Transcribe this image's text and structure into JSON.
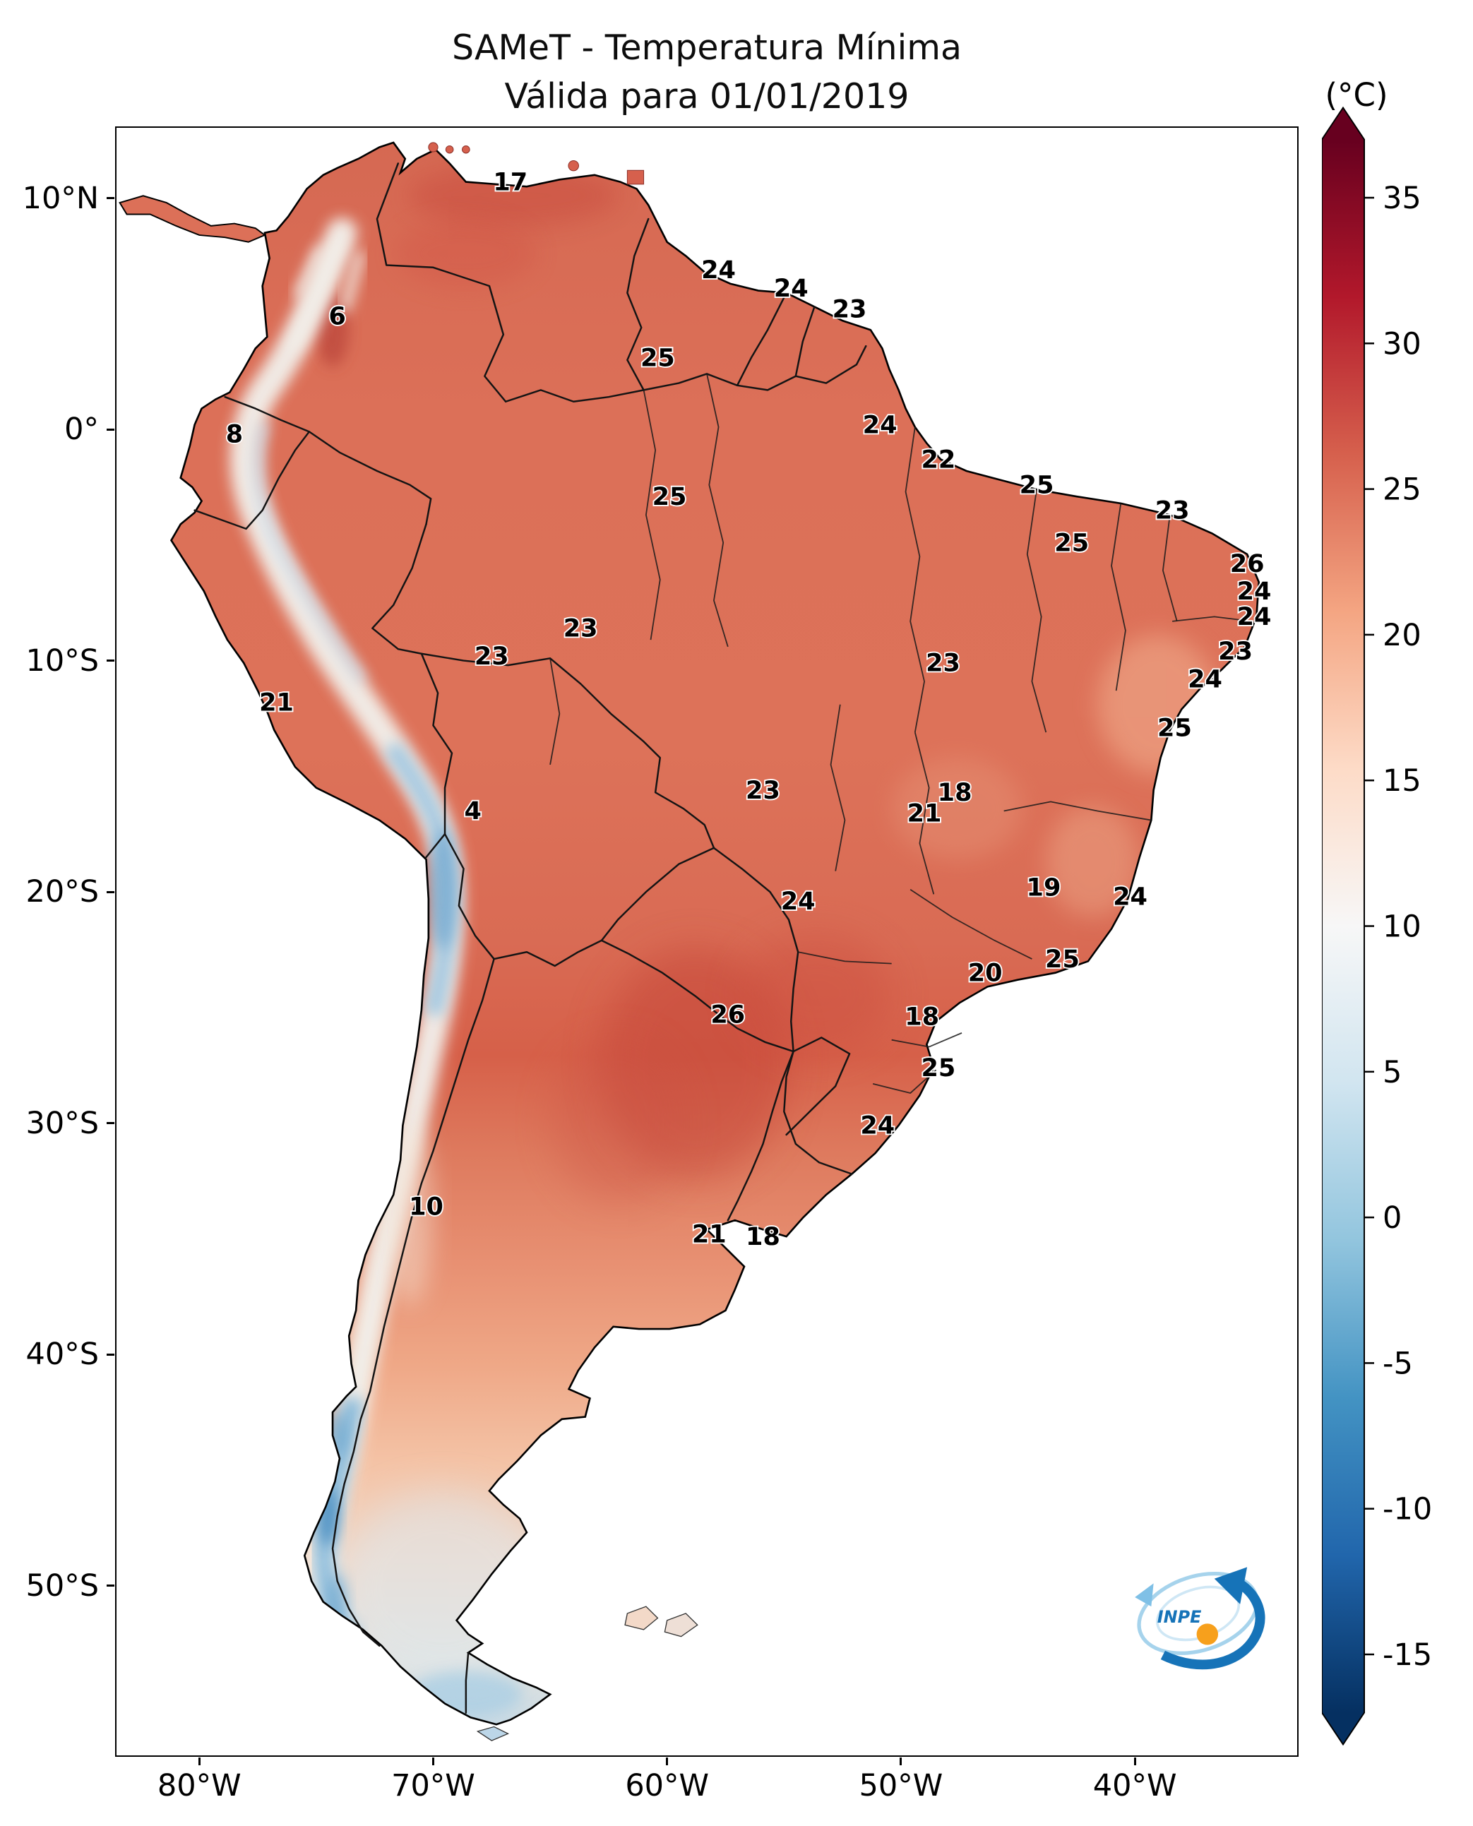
{
  "figure": {
    "title_line1": "SAMeT - Temperatura Mínima",
    "title_line2": "Válida para 01/01/2019"
  },
  "logo": {
    "text": "INPE"
  },
  "axes": {
    "y_ticks": [
      {
        "label": "10°N",
        "lat": 10
      },
      {
        "label": "0°",
        "lat": 0
      },
      {
        "label": "10°S",
        "lat": -10
      },
      {
        "label": "20°S",
        "lat": -20
      },
      {
        "label": "30°S",
        "lat": -30
      },
      {
        "label": "40°S",
        "lat": -40
      },
      {
        "label": "50°S",
        "lat": -50
      }
    ],
    "x_ticks": [
      {
        "label": "80°W",
        "lon": -80
      },
      {
        "label": "70°W",
        "lon": -70
      },
      {
        "label": "60°W",
        "lon": -60
      },
      {
        "label": "50°W",
        "lon": -50
      },
      {
        "label": "40°W",
        "lon": -40
      }
    ]
  },
  "colorbar": {
    "unit": "(°C)",
    "vmin": -17,
    "vmax": 37,
    "ticks": [
      35,
      30,
      25,
      20,
      15,
      10,
      5,
      0,
      -5,
      -10,
      -15
    ],
    "gradient": [
      "#67001f",
      "#b2182b",
      "#d6604d",
      "#f4a582",
      "#fddbc7",
      "#f7f7f7",
      "#d1e5f0",
      "#92c5de",
      "#4393c3",
      "#2166ac",
      "#053061"
    ]
  },
  "chart_data": {
    "type": "heatmap",
    "title": "SAMeT - Temperatura Mínima",
    "subtitle": "Válida para 01/01/2019",
    "variable": "Temperatura Mínima",
    "unit": "°C",
    "date": "01/01/2019",
    "extent": {
      "lon": [
        -83.6,
        -33.0
      ],
      "lat": [
        -57.4,
        13.1
      ]
    },
    "colorbar_range": [
      -17,
      37
    ],
    "legend_position": "right",
    "point_labels": [
      {
        "value": 17,
        "lon": -66.7,
        "lat": 10.7
      },
      {
        "value": 24,
        "lon": -57.8,
        "lat": 6.9
      },
      {
        "value": 24,
        "lon": -54.7,
        "lat": 6.1
      },
      {
        "value": 23,
        "lon": -52.2,
        "lat": 5.2
      },
      {
        "value": 6,
        "lon": -74.1,
        "lat": 4.9
      },
      {
        "value": 25,
        "lon": -60.4,
        "lat": 3.1
      },
      {
        "value": 8,
        "lon": -78.5,
        "lat": -0.2
      },
      {
        "value": 24,
        "lon": -50.9,
        "lat": 0.2
      },
      {
        "value": 22,
        "lon": -48.4,
        "lat": -1.3
      },
      {
        "value": 25,
        "lon": -59.9,
        "lat": -2.9
      },
      {
        "value": 25,
        "lon": -44.2,
        "lat": -2.4
      },
      {
        "value": 23,
        "lon": -38.4,
        "lat": -3.5
      },
      {
        "value": 25,
        "lon": -42.7,
        "lat": -4.9
      },
      {
        "value": 26,
        "lon": -35.2,
        "lat": -5.8
      },
      {
        "value": 24,
        "lon": -34.9,
        "lat": -7.0
      },
      {
        "value": 24,
        "lon": -34.9,
        "lat": -8.1
      },
      {
        "value": 23,
        "lon": -63.7,
        "lat": -8.6
      },
      {
        "value": 23,
        "lon": -67.5,
        "lat": -9.8
      },
      {
        "value": 23,
        "lon": -48.2,
        "lat": -10.1
      },
      {
        "value": 23,
        "lon": -35.7,
        "lat": -9.6
      },
      {
        "value": 24,
        "lon": -37.0,
        "lat": -10.8
      },
      {
        "value": 21,
        "lon": -76.7,
        "lat": -11.8
      },
      {
        "value": 25,
        "lon": -38.3,
        "lat": -12.9
      },
      {
        "value": 4,
        "lon": -68.3,
        "lat": -16.5
      },
      {
        "value": 23,
        "lon": -55.9,
        "lat": -15.6
      },
      {
        "value": 18,
        "lon": -47.7,
        "lat": -15.7
      },
      {
        "value": 21,
        "lon": -49.0,
        "lat": -16.6
      },
      {
        "value": 19,
        "lon": -43.9,
        "lat": -19.8
      },
      {
        "value": 24,
        "lon": -40.2,
        "lat": -20.2
      },
      {
        "value": 24,
        "lon": -54.4,
        "lat": -20.4
      },
      {
        "value": 20,
        "lon": -46.4,
        "lat": -23.5
      },
      {
        "value": 25,
        "lon": -43.1,
        "lat": -22.9
      },
      {
        "value": 26,
        "lon": -57.4,
        "lat": -25.3
      },
      {
        "value": 18,
        "lon": -49.1,
        "lat": -25.4
      },
      {
        "value": 25,
        "lon": -48.4,
        "lat": -27.6
      },
      {
        "value": 24,
        "lon": -51.0,
        "lat": -30.1
      },
      {
        "value": 10,
        "lon": -70.3,
        "lat": -33.6
      },
      {
        "value": 21,
        "lon": -58.2,
        "lat": -34.8
      },
      {
        "value": 18,
        "lon": -55.9,
        "lat": -34.9
      }
    ]
  }
}
